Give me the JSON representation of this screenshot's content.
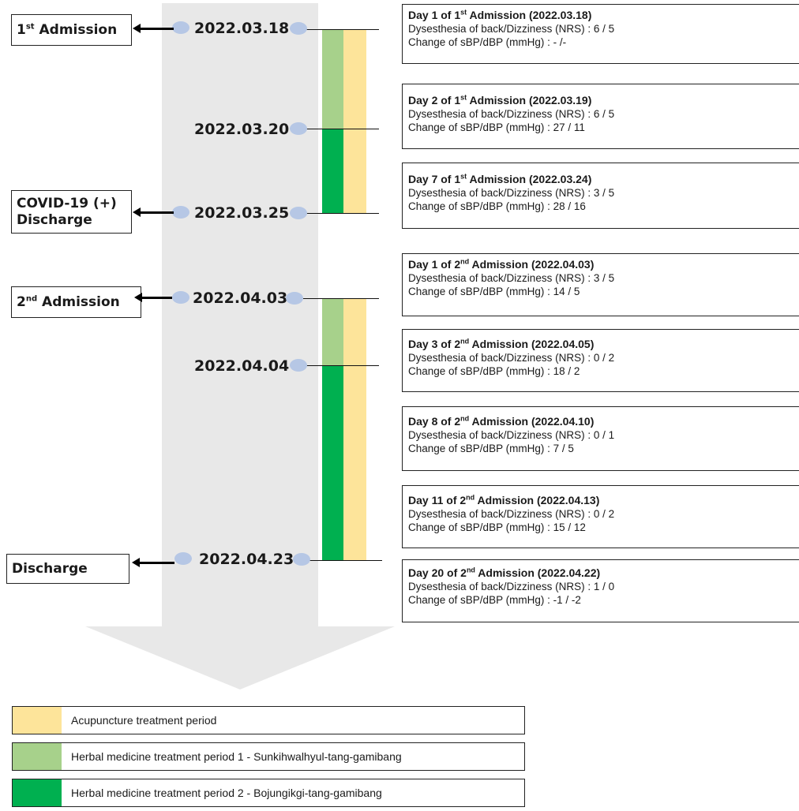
{
  "colors": {
    "acupuncture": "#fde49a",
    "herbal_1": "#a7d18b",
    "herbal_2": "#00b050",
    "timeline": "#e8e8e8",
    "date_dot": "#b6c7e5"
  },
  "timeline": {
    "dates": [
      "2022.03.18",
      "2022.03.20",
      "2022.03.25",
      "2022.04.03",
      "2022.04.04",
      "2022.04.23"
    ]
  },
  "events": [
    {
      "pre": "1",
      "sup": "st",
      "post": " Admission"
    },
    {
      "line1": "COVID-19 (+)",
      "line2": "Discharge"
    },
    {
      "pre": "2",
      "sup": "nd",
      "post": " Admission"
    },
    {
      "pre": "Discharge",
      "sup": "",
      "post": ""
    }
  ],
  "records": [
    {
      "title_pre": "Day 1 of 1",
      "sup": "st",
      "title_post": " Admission (2022.03.18)",
      "nrs": "Dysesthesia of back/Dizziness (NRS) : 6 / 5",
      "bp": "Change of sBP/dBP (mmHg) : - /-"
    },
    {
      "title_pre": "Day 2 of 1",
      "sup": "st",
      "title_post": " Admission (2022.03.19)",
      "nrs": "Dysesthesia of back/Dizziness (NRS) : 6 / 5",
      "bp": "Change of sBP/dBP (mmHg) : 27 / 11"
    },
    {
      "title_pre": "Day 7 of 1",
      "sup": "st",
      "title_post": " Admission (2022.03.24)",
      "nrs": "Dysesthesia of back/Dizziness (NRS) : 3 / 5",
      "bp": "Change of sBP/dBP (mmHg) : 28 / 16"
    },
    {
      "title_pre": "Day 1 of 2",
      "sup": "nd",
      "title_post": " Admission (2022.04.03)",
      "nrs": "Dysesthesia of back/Dizziness (NRS) : 3 / 5",
      "bp": "Change of sBP/dBP (mmHg) : 14 / 5"
    },
    {
      "title_pre": "Day 3 of 2",
      "sup": "nd",
      "title_post": " Admission (2022.04.05)",
      "nrs": "Dysesthesia of back/Dizziness (NRS) : 0 / 2",
      "bp": "Change of sBP/dBP (mmHg) : 18 / 2"
    },
    {
      "title_pre": "Day 8 of 2",
      "sup": "nd",
      "title_post": " Admission (2022.04.10)",
      "nrs": "Dysesthesia of back/Dizziness (NRS) : 0 / 1",
      "bp": "Change of sBP/dBP (mmHg) : 7 / 5"
    },
    {
      "title_pre": "Day 11 of 2",
      "sup": "nd",
      "title_post": " Admission (2022.04.13)",
      "nrs": "Dysesthesia of back/Dizziness (NRS) : 0 / 2",
      "bp": "Change of sBP/dBP (mmHg) : 15 / 12"
    },
    {
      "title_pre": "Day 20 of 2",
      "sup": "nd",
      "title_post": " Admission (2022.04.22)",
      "nrs": "Dysesthesia of back/Dizziness (NRS) : 1 / 0",
      "bp": "Change of sBP/dBP (mmHg) : -1 / -2"
    }
  ],
  "legend": [
    "Acupuncture treatment period",
    "Herbal medicine treatment period 1 - Sunkihwalhyul-tang-gamibang",
    "Herbal medicine treatment period 2 - Bojungikgi-tang-gamibang"
  ]
}
